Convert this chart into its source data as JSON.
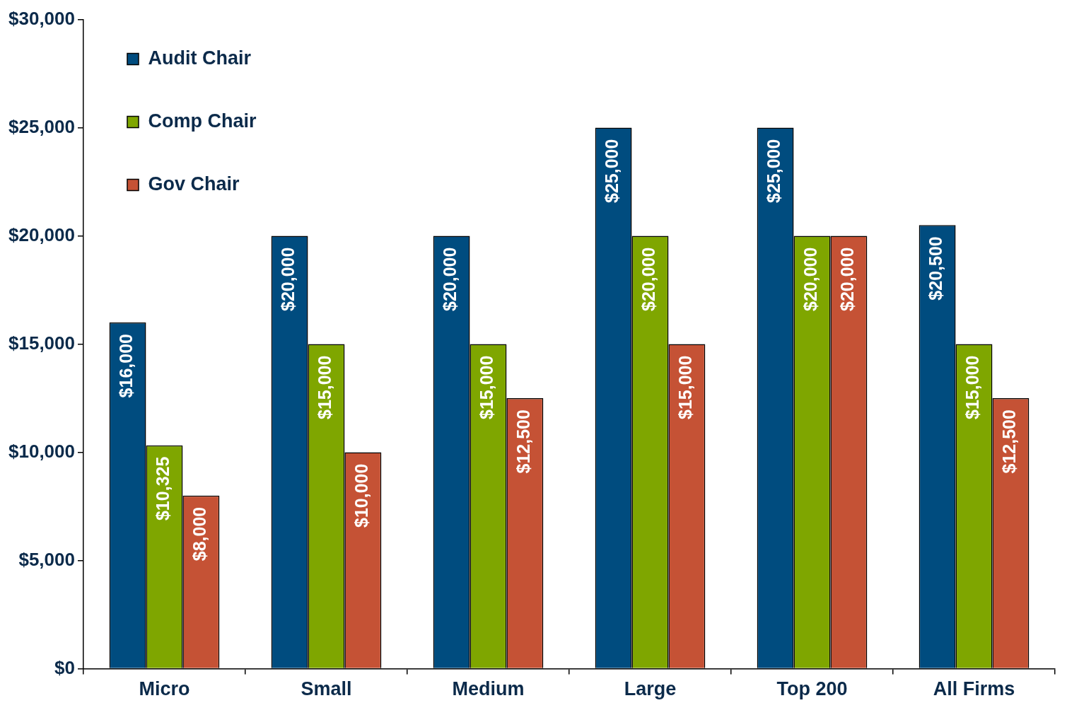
{
  "chart_data": {
    "type": "bar",
    "categories": [
      "Micro",
      "Small",
      "Medium",
      "Large",
      "Top 200",
      "All Firms"
    ],
    "series": [
      {
        "name": "Audit Chair",
        "color": "#004c7f",
        "values": [
          16000,
          20000,
          20000,
          25000,
          25000,
          20500
        ],
        "value_labels": [
          "$16,000",
          "$20,000",
          "$20,000",
          "$25,000",
          "$25,000",
          "$20,500"
        ]
      },
      {
        "name": "Comp Chair",
        "color": "#7fa600",
        "values": [
          10325,
          15000,
          15000,
          20000,
          20000,
          15000
        ],
        "value_labels": [
          "$10,325",
          "$15,000",
          "$15,000",
          "$20,000",
          "$20,000",
          "$15,000"
        ]
      },
      {
        "name": "Gov Chair",
        "color": "#c55235",
        "values": [
          8000,
          10000,
          12500,
          15000,
          20000,
          12500
        ],
        "value_labels": [
          "$8,000",
          "$10,000",
          "$12,500",
          "$15,000",
          "$20,000",
          "$12,500"
        ]
      }
    ],
    "ylim": [
      0,
      30000
    ],
    "yticks": [
      {
        "value": 0,
        "label": "$0"
      },
      {
        "value": 5000,
        "label": "$5,000"
      },
      {
        "value": 10000,
        "label": "$10,000"
      },
      {
        "value": 15000,
        "label": "$15,000"
      },
      {
        "value": 20000,
        "label": "$20,000"
      },
      {
        "value": 25000,
        "label": "$25,000"
      },
      {
        "value": 30000,
        "label": "$30,000"
      }
    ],
    "grid": false,
    "legend": "top left"
  }
}
